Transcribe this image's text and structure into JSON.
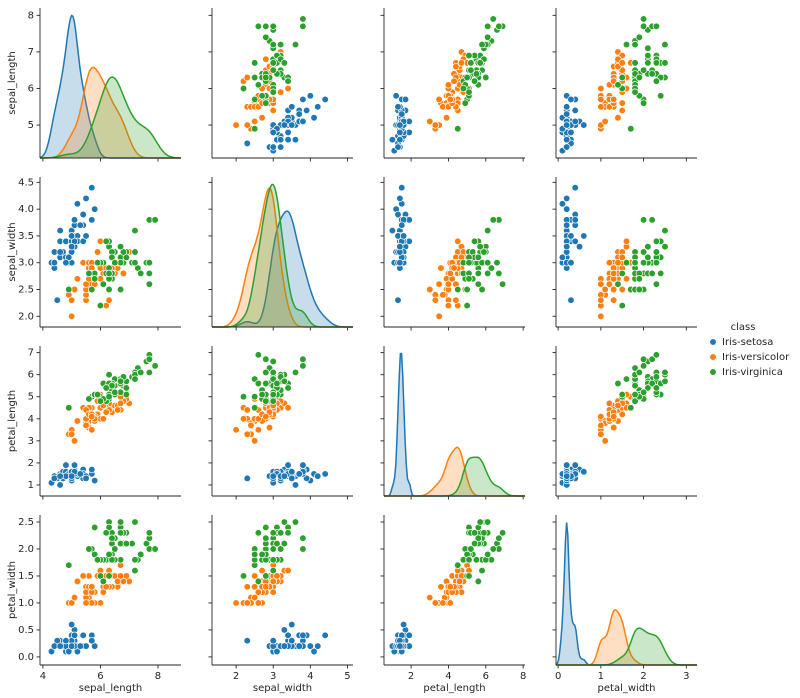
{
  "chart_data": {
    "type": "pairplot",
    "legend_title": "class",
    "legend_position": "right",
    "axes": [
      {
        "label": "sepal_length",
        "xlim": [
          3.9,
          8.8
        ],
        "xticks": [
          4,
          6,
          8
        ],
        "ylim": [
          4.1,
          8.2
        ],
        "yticks": [
          5,
          6,
          7,
          8
        ]
      },
      {
        "label": "sepal_width",
        "xlim": [
          1.35,
          5.15
        ],
        "xticks": [
          2,
          3,
          4,
          5
        ],
        "ylim": [
          1.8,
          4.6
        ],
        "yticks": [
          {
            "value": 2,
            "label": "2.0"
          },
          2.5,
          {
            "value": 3,
            "label": "3.0"
          },
          3.5,
          {
            "value": 4,
            "label": "4.0"
          },
          4.5
        ]
      },
      {
        "label": "petal_length",
        "xlim": [
          0.55,
          8.1
        ],
        "xticks": [
          2,
          4,
          6,
          8
        ],
        "ylim": [
          0.5,
          7.3
        ],
        "yticks": [
          1,
          2,
          3,
          4,
          5,
          6,
          7
        ]
      },
      {
        "label": "petal_width",
        "xlim": [
          -0.05,
          3.25
        ],
        "xticks": [
          0,
          1,
          2,
          3
        ],
        "ylim": [
          -0.15,
          2.63
        ],
        "yticks": [
          {
            "value": 0,
            "label": "0.0"
          },
          0.5,
          {
            "value": 1,
            "label": "1.0"
          },
          1.5,
          {
            "value": 2,
            "label": "2.0"
          },
          2.5
        ]
      }
    ],
    "series": [
      {
        "name": "Iris-setosa",
        "color": "#1f77b4",
        "values": [
          [
            5.1,
            3.5,
            1.4,
            0.2
          ],
          [
            4.9,
            3.0,
            1.4,
            0.2
          ],
          [
            4.7,
            3.2,
            1.3,
            0.2
          ],
          [
            4.6,
            3.1,
            1.5,
            0.2
          ],
          [
            5.0,
            3.6,
            1.4,
            0.2
          ],
          [
            5.4,
            3.9,
            1.7,
            0.4
          ],
          [
            4.6,
            3.4,
            1.4,
            0.3
          ],
          [
            5.0,
            3.4,
            1.5,
            0.2
          ],
          [
            4.4,
            2.9,
            1.4,
            0.2
          ],
          [
            4.9,
            3.1,
            1.5,
            0.1
          ],
          [
            5.4,
            3.7,
            1.5,
            0.2
          ],
          [
            4.8,
            3.4,
            1.6,
            0.2
          ],
          [
            4.8,
            3.0,
            1.4,
            0.1
          ],
          [
            4.3,
            3.0,
            1.1,
            0.1
          ],
          [
            5.8,
            4.0,
            1.2,
            0.2
          ],
          [
            5.7,
            4.4,
            1.5,
            0.4
          ],
          [
            5.4,
            3.9,
            1.3,
            0.4
          ],
          [
            5.1,
            3.5,
            1.4,
            0.3
          ],
          [
            5.7,
            3.8,
            1.7,
            0.3
          ],
          [
            5.1,
            3.8,
            1.5,
            0.3
          ],
          [
            5.4,
            3.4,
            1.7,
            0.2
          ],
          [
            5.1,
            3.7,
            1.5,
            0.4
          ],
          [
            4.6,
            3.6,
            1.0,
            0.2
          ],
          [
            5.1,
            3.3,
            1.7,
            0.5
          ],
          [
            4.8,
            3.4,
            1.9,
            0.2
          ],
          [
            5.0,
            3.0,
            1.6,
            0.2
          ],
          [
            5.0,
            3.4,
            1.6,
            0.4
          ],
          [
            5.2,
            3.5,
            1.5,
            0.2
          ],
          [
            5.2,
            3.4,
            1.4,
            0.2
          ],
          [
            4.7,
            3.2,
            1.6,
            0.2
          ],
          [
            4.8,
            3.1,
            1.6,
            0.2
          ],
          [
            5.4,
            3.4,
            1.5,
            0.4
          ],
          [
            5.2,
            4.1,
            1.5,
            0.1
          ],
          [
            5.5,
            4.2,
            1.4,
            0.2
          ],
          [
            4.9,
            3.1,
            1.5,
            0.1
          ],
          [
            5.0,
            3.2,
            1.2,
            0.2
          ],
          [
            5.5,
            3.5,
            1.3,
            0.2
          ],
          [
            4.9,
            3.1,
            1.5,
            0.1
          ],
          [
            4.4,
            3.0,
            1.3,
            0.2
          ],
          [
            5.1,
            3.4,
            1.5,
            0.2
          ],
          [
            5.0,
            3.5,
            1.3,
            0.3
          ],
          [
            4.5,
            2.3,
            1.3,
            0.3
          ],
          [
            4.4,
            3.2,
            1.3,
            0.2
          ],
          [
            5.0,
            3.5,
            1.6,
            0.6
          ],
          [
            5.1,
            3.8,
            1.9,
            0.4
          ],
          [
            4.8,
            3.0,
            1.4,
            0.3
          ],
          [
            5.1,
            3.8,
            1.6,
            0.2
          ],
          [
            4.6,
            3.2,
            1.4,
            0.2
          ],
          [
            5.3,
            3.7,
            1.5,
            0.2
          ],
          [
            5.0,
            3.3,
            1.4,
            0.2
          ]
        ]
      },
      {
        "name": "Iris-versicolor",
        "color": "#ff7f0e",
        "values": [
          [
            7.0,
            3.2,
            4.7,
            1.4
          ],
          [
            6.4,
            3.2,
            4.5,
            1.5
          ],
          [
            6.9,
            3.1,
            4.9,
            1.5
          ],
          [
            5.5,
            2.3,
            4.0,
            1.3
          ],
          [
            6.5,
            2.8,
            4.6,
            1.5
          ],
          [
            5.7,
            2.8,
            4.5,
            1.3
          ],
          [
            6.3,
            3.3,
            4.7,
            1.6
          ],
          [
            4.9,
            2.4,
            3.3,
            1.0
          ],
          [
            6.6,
            2.9,
            4.6,
            1.3
          ],
          [
            5.2,
            2.7,
            3.9,
            1.4
          ],
          [
            5.0,
            2.0,
            3.5,
            1.0
          ],
          [
            5.9,
            3.0,
            4.2,
            1.5
          ],
          [
            6.0,
            2.2,
            4.0,
            1.0
          ],
          [
            6.1,
            2.9,
            4.7,
            1.4
          ],
          [
            5.6,
            2.9,
            3.6,
            1.3
          ],
          [
            6.7,
            3.1,
            4.4,
            1.4
          ],
          [
            5.6,
            3.0,
            4.5,
            1.5
          ],
          [
            5.8,
            2.7,
            4.1,
            1.0
          ],
          [
            6.2,
            2.2,
            4.5,
            1.5
          ],
          [
            5.6,
            2.5,
            3.9,
            1.1
          ],
          [
            5.9,
            3.2,
            4.8,
            1.8
          ],
          [
            6.1,
            2.8,
            4.0,
            1.3
          ],
          [
            6.3,
            2.5,
            4.9,
            1.5
          ],
          [
            6.1,
            2.8,
            4.7,
            1.2
          ],
          [
            6.4,
            2.9,
            4.3,
            1.3
          ],
          [
            6.6,
            3.0,
            4.4,
            1.4
          ],
          [
            6.8,
            2.8,
            4.8,
            1.4
          ],
          [
            6.7,
            3.0,
            5.0,
            1.7
          ],
          [
            6.0,
            2.9,
            4.5,
            1.5
          ],
          [
            5.7,
            2.6,
            3.5,
            1.0
          ],
          [
            5.5,
            2.4,
            3.8,
            1.1
          ],
          [
            5.5,
            2.4,
            3.7,
            1.0
          ],
          [
            5.8,
            2.7,
            3.9,
            1.2
          ],
          [
            6.0,
            2.7,
            5.1,
            1.6
          ],
          [
            5.4,
            3.0,
            4.5,
            1.5
          ],
          [
            6.0,
            3.4,
            4.5,
            1.6
          ],
          [
            6.7,
            3.1,
            4.7,
            1.5
          ],
          [
            6.3,
            2.3,
            4.4,
            1.3
          ],
          [
            5.6,
            3.0,
            4.1,
            1.3
          ],
          [
            5.5,
            2.5,
            4.0,
            1.3
          ],
          [
            5.5,
            2.6,
            4.4,
            1.2
          ],
          [
            6.1,
            3.0,
            4.6,
            1.4
          ],
          [
            5.8,
            2.6,
            4.0,
            1.2
          ],
          [
            5.0,
            2.3,
            3.3,
            1.0
          ],
          [
            5.6,
            2.7,
            4.2,
            1.3
          ],
          [
            5.7,
            3.0,
            4.2,
            1.2
          ],
          [
            5.7,
            2.9,
            4.2,
            1.3
          ],
          [
            6.2,
            2.9,
            4.3,
            1.3
          ],
          [
            5.1,
            2.5,
            3.0,
            1.1
          ],
          [
            5.7,
            2.8,
            4.1,
            1.3
          ]
        ]
      },
      {
        "name": "Iris-virginica",
        "color": "#2ca02c",
        "values": [
          [
            6.3,
            3.3,
            6.0,
            2.5
          ],
          [
            5.8,
            2.7,
            5.1,
            1.9
          ],
          [
            7.1,
            3.0,
            5.9,
            2.1
          ],
          [
            6.3,
            2.9,
            5.6,
            1.8
          ],
          [
            6.5,
            3.0,
            5.8,
            2.2
          ],
          [
            7.6,
            3.0,
            6.6,
            2.1
          ],
          [
            4.9,
            2.5,
            4.5,
            1.7
          ],
          [
            7.3,
            2.9,
            6.3,
            1.8
          ],
          [
            6.7,
            2.5,
            5.8,
            1.8
          ],
          [
            7.2,
            3.6,
            6.1,
            2.5
          ],
          [
            6.5,
            3.2,
            5.1,
            2.0
          ],
          [
            6.4,
            2.7,
            5.3,
            1.9
          ],
          [
            6.8,
            3.0,
            5.5,
            2.1
          ],
          [
            5.7,
            2.5,
            5.0,
            2.0
          ],
          [
            5.8,
            2.8,
            5.1,
            2.4
          ],
          [
            6.4,
            3.2,
            5.3,
            2.3
          ],
          [
            6.5,
            3.0,
            5.5,
            1.8
          ],
          [
            7.7,
            3.8,
            6.7,
            2.2
          ],
          [
            7.7,
            2.6,
            6.9,
            2.3
          ],
          [
            6.0,
            2.2,
            5.0,
            1.5
          ],
          [
            6.9,
            3.2,
            5.7,
            2.3
          ],
          [
            5.6,
            2.8,
            4.9,
            2.0
          ],
          [
            7.7,
            2.8,
            6.7,
            2.0
          ],
          [
            6.3,
            2.7,
            4.9,
            1.8
          ],
          [
            6.7,
            3.3,
            5.7,
            2.1
          ],
          [
            7.2,
            3.2,
            6.0,
            1.8
          ],
          [
            6.2,
            2.8,
            4.8,
            1.8
          ],
          [
            6.1,
            3.0,
            4.9,
            1.8
          ],
          [
            6.4,
            2.8,
            5.6,
            2.1
          ],
          [
            7.2,
            3.0,
            5.8,
            1.6
          ],
          [
            7.4,
            2.8,
            6.1,
            1.9
          ],
          [
            7.9,
            3.8,
            6.4,
            2.0
          ],
          [
            6.4,
            2.8,
            5.6,
            2.2
          ],
          [
            6.3,
            2.8,
            5.1,
            1.5
          ],
          [
            6.1,
            2.6,
            5.6,
            1.4
          ],
          [
            7.7,
            3.0,
            6.1,
            2.3
          ],
          [
            6.3,
            3.4,
            5.6,
            2.4
          ],
          [
            6.4,
            3.1,
            5.5,
            1.8
          ],
          [
            6.0,
            3.0,
            4.8,
            1.8
          ],
          [
            6.9,
            3.1,
            5.4,
            2.1
          ],
          [
            6.7,
            3.1,
            5.6,
            2.4
          ],
          [
            6.9,
            3.1,
            5.1,
            2.3
          ],
          [
            5.8,
            2.7,
            5.1,
            1.9
          ],
          [
            6.8,
            3.2,
            5.9,
            2.3
          ],
          [
            6.7,
            3.3,
            5.7,
            2.5
          ],
          [
            6.7,
            3.0,
            5.2,
            2.3
          ],
          [
            6.3,
            2.5,
            5.0,
            1.9
          ],
          [
            6.5,
            3.0,
            5.2,
            2.0
          ],
          [
            6.2,
            3.4,
            5.4,
            2.3
          ],
          [
            5.9,
            3.0,
            5.1,
            1.8
          ]
        ]
      }
    ]
  }
}
